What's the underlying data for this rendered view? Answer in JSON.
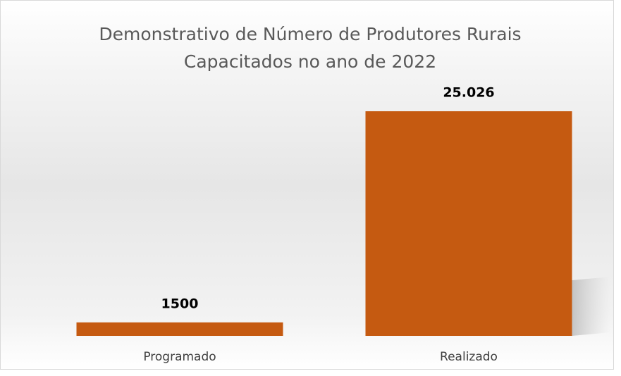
{
  "chart_data": {
    "type": "bar",
    "title": [
      "Demonstrativo de Número de Produtores Rurais",
      "Capacitados no ano de 2022"
    ],
    "categories": [
      "Programado",
      "Realizado"
    ],
    "values": [
      1500,
      25026
    ],
    "value_labels": [
      "1500",
      "25.026"
    ],
    "color": "#c55a11"
  }
}
